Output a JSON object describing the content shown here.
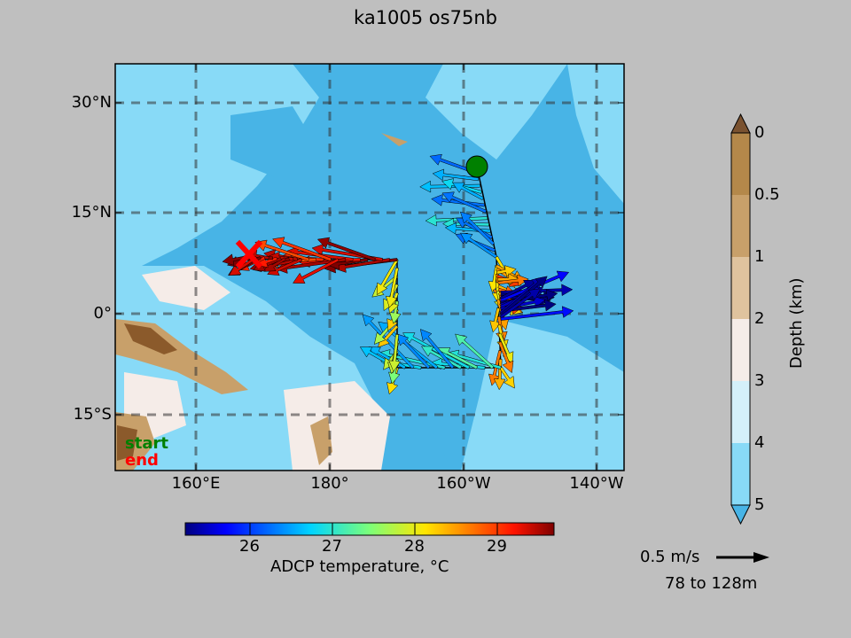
{
  "title": "ka1005 os75nb",
  "map": {
    "lat_ticks": [
      "30°N",
      "15°N",
      "0°",
      "15°S"
    ],
    "lon_ticks": [
      "160°E",
      "180°",
      "160°W",
      "140°W"
    ],
    "legend": {
      "start": "start",
      "end": "end",
      "start_color": "#008000",
      "end_color": "#ff0000"
    },
    "start_marker": {
      "lon": -158.3,
      "lat": 21.3
    },
    "end_marker": {
      "lon": 167.3,
      "lat": 8.7
    },
    "ocean_color": "#48b4e6",
    "shallow_color": "#88daf7"
  },
  "temperature_colorbar": {
    "label": "ADCP temperature, °C",
    "ticks": [
      "26",
      "27",
      "28",
      "29"
    ],
    "range": [
      25.2,
      29.7
    ]
  },
  "depth_colorbar": {
    "label": "Depth (km)",
    "ticks": [
      "0",
      "0.5",
      "1",
      "2",
      "3",
      "4",
      "5"
    ],
    "colors": [
      "#b4884a",
      "#c8a06a",
      "#dfc39e",
      "#f5ece8",
      "#d4f0fa",
      "#88daf7",
      "#48b4e6"
    ]
  },
  "scale": {
    "speed": "0.5 m/s",
    "depth_range": "78 to 128m"
  }
}
